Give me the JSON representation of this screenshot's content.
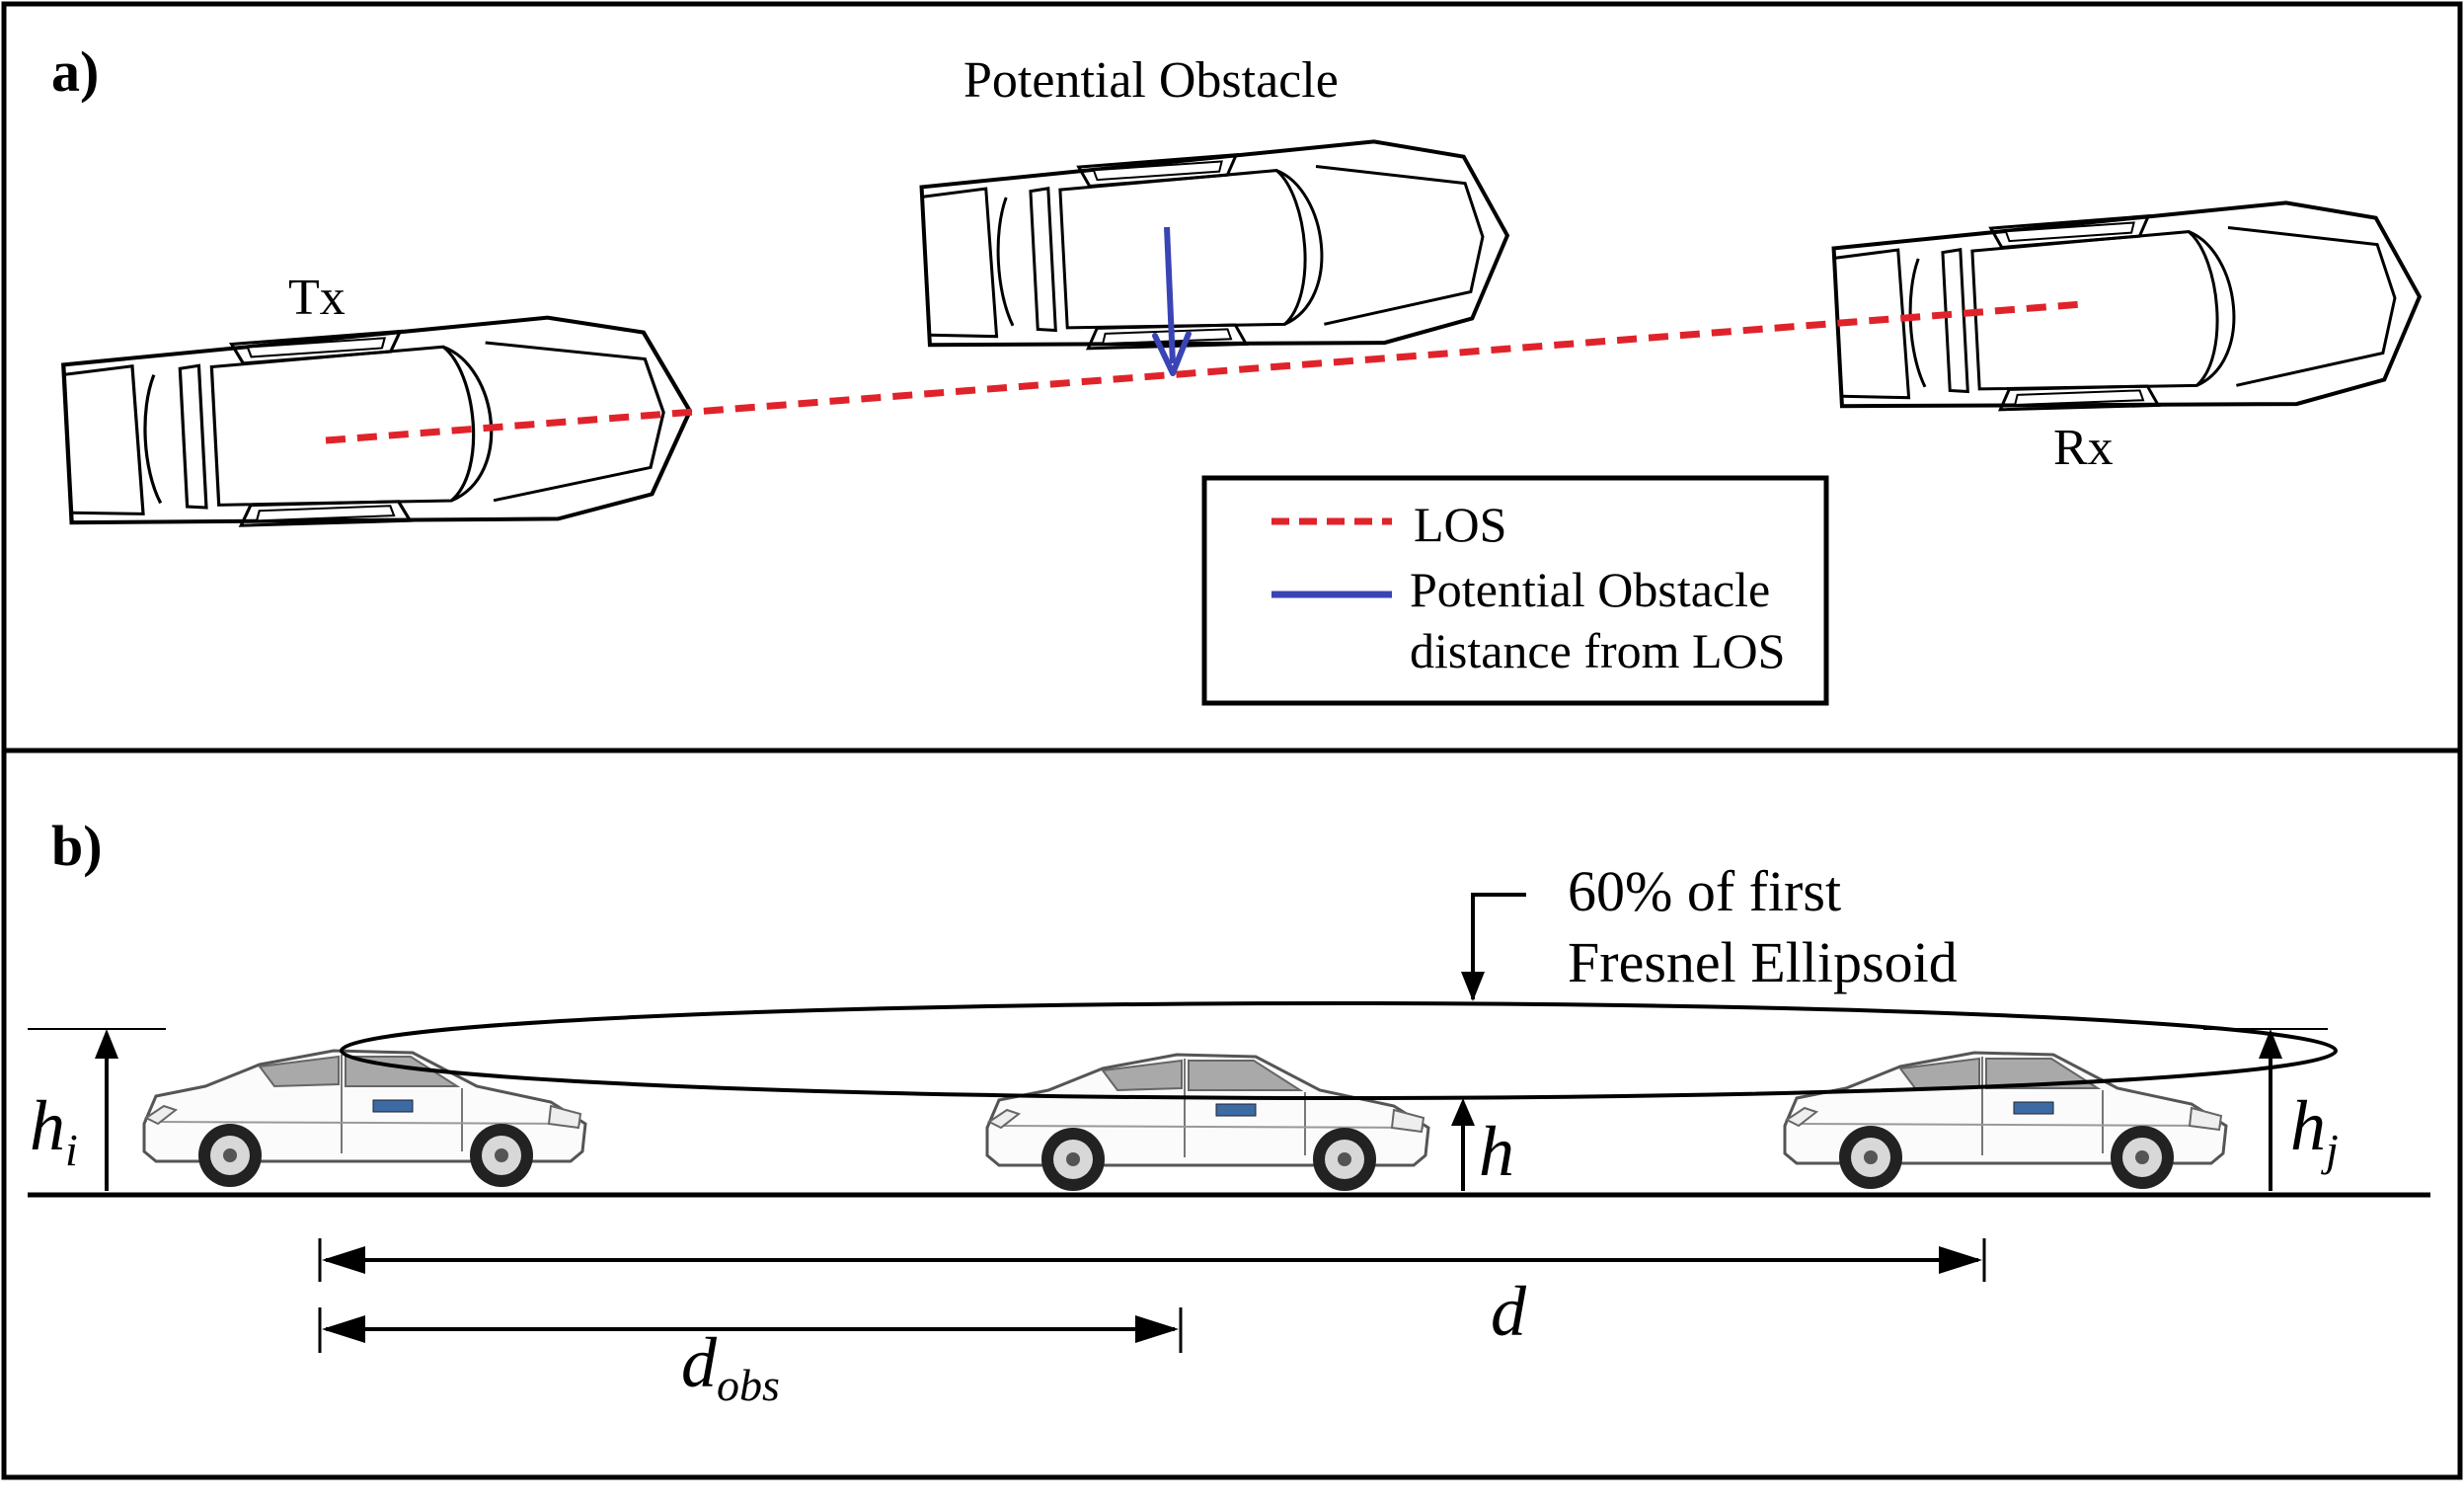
{
  "panel_a": {
    "label": "a)",
    "tx_label": "Tx",
    "obstacle_label": "Potential Obstacle",
    "rx_label": "Rx",
    "legend": {
      "los_label": "LOS",
      "distance_label_line1": "Potential Obstacle",
      "distance_label_line2": "distance from LOS"
    }
  },
  "panel_b": {
    "label": "b)",
    "fresnel_line1": "60% of first",
    "fresnel_line2": "Fresnel Ellipsoid",
    "h_i": {
      "base": "h",
      "sub": "i"
    },
    "h": "h",
    "h_j": {
      "base": "h",
      "sub": "j"
    },
    "d": "d",
    "d_obs": {
      "base": "d",
      "sub": "obs"
    }
  },
  "colors": {
    "los_line": "#e0232b",
    "obstacle_distance_arrow": "#3a44b5",
    "outline": "#000000"
  },
  "icons": [
    "car-top-view-icon",
    "car-side-view-icon"
  ]
}
